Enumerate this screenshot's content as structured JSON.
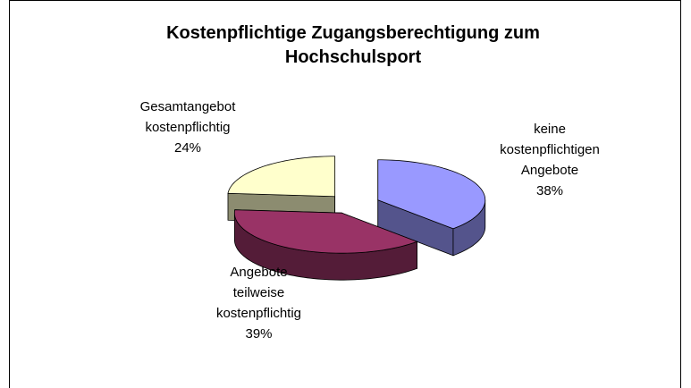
{
  "chart_data": {
    "type": "pie3d",
    "title": "Kostenpflichtige Zugangsberechtigung zum Hochschulsport",
    "categories": [
      "keine kostenpflichtigen Angebote",
      "Angebote teilweise kostenpflichtig",
      "Gesamtangebot kostenpflichtig"
    ],
    "values": [
      38,
      39,
      24
    ],
    "value_labels": [
      "38%",
      "39%",
      "24%"
    ],
    "colors": [
      "#9999ff",
      "#993366",
      "#ffffcc"
    ]
  }
}
